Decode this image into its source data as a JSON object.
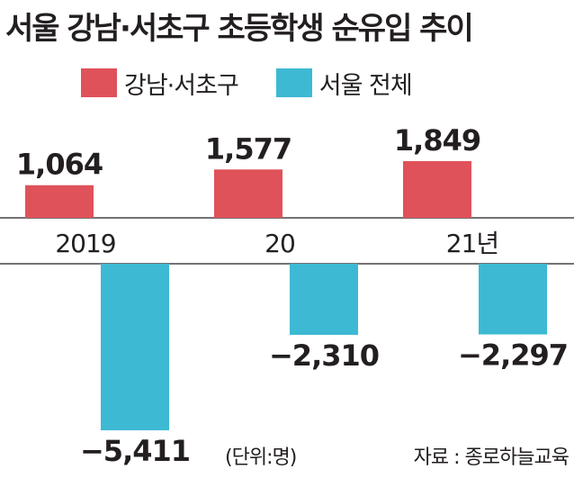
{
  "title": "서울 강남·서초구 초등학생 순유입 추이",
  "legend": [
    {
      "label": "강남·서초구",
      "color": "#e0525a"
    },
    {
      "label": "서울 전체",
      "color": "#3db9d3"
    }
  ],
  "chart_data": {
    "type": "bar",
    "categories": [
      "2019",
      "20",
      "21년"
    ],
    "series": [
      {
        "name": "강남·서초구",
        "values": [
          1064,
          1577,
          1849
        ],
        "labels": [
          "1,064",
          "1,577",
          "1,849"
        ],
        "color": "#e0525a"
      },
      {
        "name": "서울 전체",
        "values": [
          -5411,
          -2310,
          -2297
        ],
        "labels": [
          "−5,411",
          "−2,310",
          "−2,297"
        ],
        "color": "#3db9d3"
      }
    ],
    "grid": false,
    "legend_position": "top"
  },
  "footer": {
    "unit": "(단위:명)",
    "source": "자료 : 종로하늘교육"
  }
}
